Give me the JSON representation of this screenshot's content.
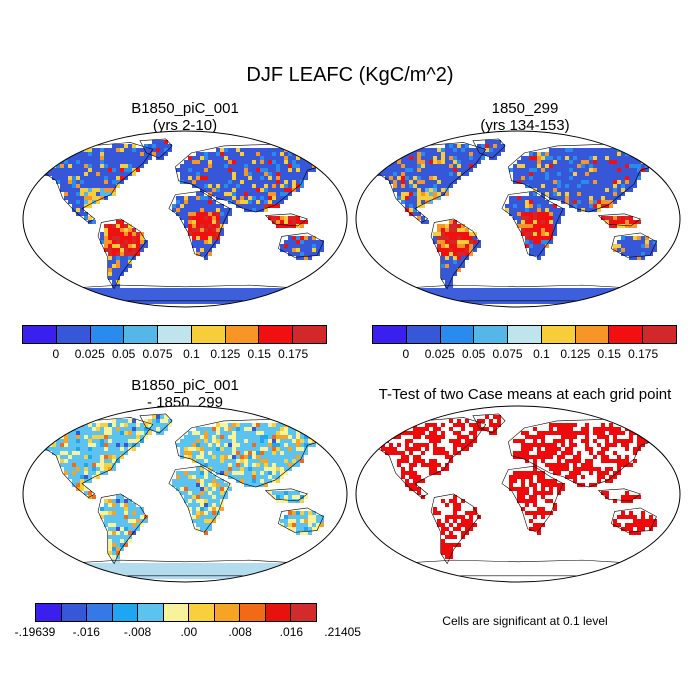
{
  "title": "DJF LEAFC (KgC/m^2)",
  "panels": {
    "top_left": {
      "title": "B1850_piC_001",
      "subtitle": "(yrs 2-10)"
    },
    "top_right": {
      "title": "1850_299",
      "subtitle": "(yrs 134-153)"
    },
    "bottom_left": {
      "title": "B1850_piC_001",
      "subtitle": "- 1850_299"
    },
    "bottom_right": {
      "title": "T-Test of two Case means at each grid point"
    }
  },
  "colorbar_abs": {
    "colors": [
      "#3b1fef",
      "#3557d8",
      "#2a8bef",
      "#55b6e8",
      "#bfe4ee",
      "#f7ce3a",
      "#f79527",
      "#f20f0f",
      "#d2282a"
    ],
    "ticks": [
      "0",
      "0.025",
      "0.05",
      "0.075",
      "0.1",
      "0.125",
      "0.15",
      "0.175"
    ]
  },
  "colorbar_diff": {
    "colors": [
      "#3b1fef",
      "#3557d8",
      "#3579e6",
      "#1fa6f2",
      "#5cc2f0",
      "#f8f29a",
      "#f8cf3d",
      "#f7a426",
      "#f26a17",
      "#e5120e",
      "#d32a2c"
    ],
    "ticks": [
      "-.19639",
      "-.016",
      "-.008",
      ".00",
      ".008",
      ".016",
      ".21405"
    ]
  },
  "significance_note": "Cells are significant at 0.1 level",
  "map_colors": {
    "ocean": "#ffffff",
    "land_abs": "#3d5fdc",
    "land_diff": "#b3dcee",
    "sig": "#ee0a0a"
  }
}
